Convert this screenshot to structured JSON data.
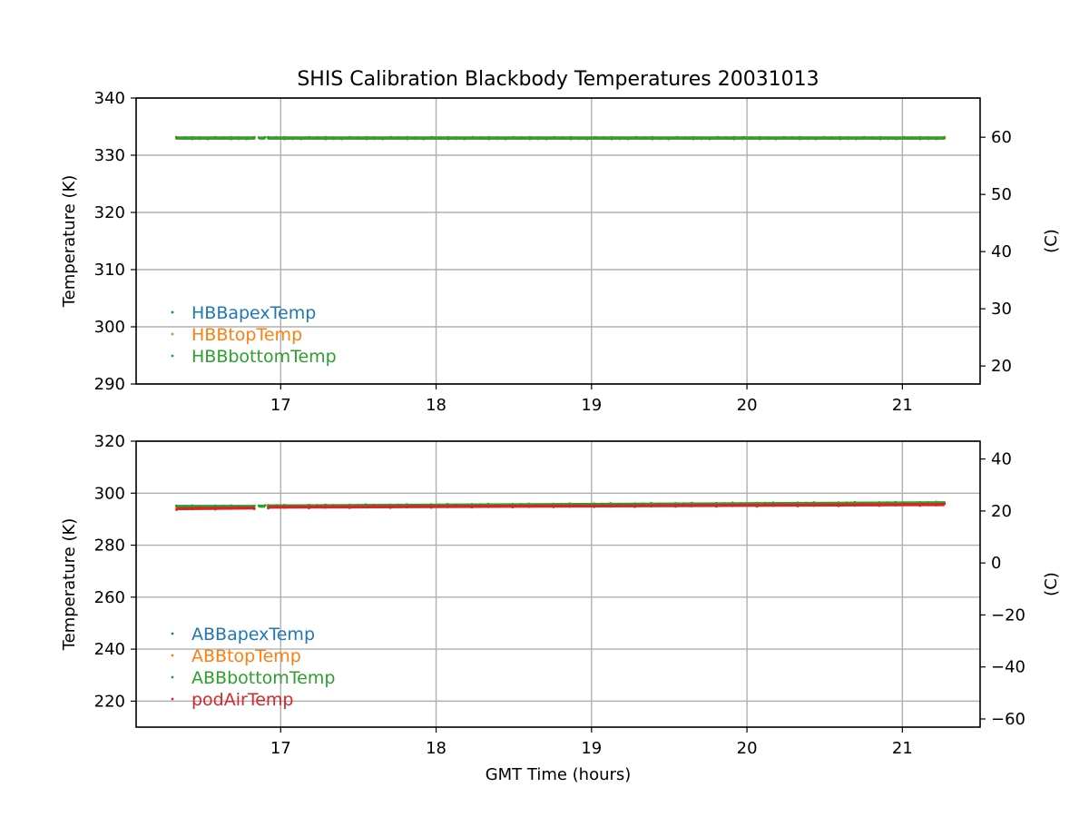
{
  "title": "SHIS Calibration Blackbody Temperatures 20031013",
  "colors": {
    "blue": "#1f77b4",
    "orange": "#ff7f0e",
    "green": "#2ca02c",
    "red": "#d62728"
  },
  "chart_data": [
    {
      "type": "scatter",
      "title": "SHIS Calibration Blackbody Temperatures 20031013",
      "xlabel": "",
      "ylabel": "Temperature (K)",
      "ylabel_right": "(C)",
      "xlim": [
        16.07,
        21.5
      ],
      "ylim": [
        290,
        340
      ],
      "ylim_right_C": [
        16.85,
        66.85
      ],
      "xticks": [
        17,
        18,
        19,
        20,
        21
      ],
      "xtick_labels": [
        "17",
        "18",
        "19",
        "20",
        "21"
      ],
      "yticks": [
        290,
        300,
        310,
        320,
        330,
        340
      ],
      "ytick_labels": [
        "290",
        "300",
        "310",
        "320",
        "330",
        "340"
      ],
      "yticks_right": [
        20,
        30,
        40,
        50,
        60
      ],
      "ytick_right_labels": [
        "20",
        "30",
        "40",
        "50",
        "60"
      ],
      "grid": true,
      "legend_position": "lower-left",
      "series": [
        {
          "name": "HBBapexTemp",
          "color": "#1f77b4",
          "segments": [
            {
              "x": [
                16.33,
                16.83
              ],
              "y": [
                333.0,
                333.0
              ]
            },
            {
              "x": [
                16.92,
                19.97
              ],
              "y": [
                333.0,
                333.0
              ]
            },
            {
              "x": [
                19.98,
                21.27
              ],
              "y": [
                333.0,
                333.0
              ]
            }
          ]
        },
        {
          "name": "HBBtopTemp",
          "color": "#ff7f0e",
          "segments": [
            {
              "x": [
                16.33,
                16.83
              ],
              "y": [
                333.0,
                333.0
              ]
            },
            {
              "x": [
                16.92,
                19.97
              ],
              "y": [
                333.0,
                333.0
              ]
            },
            {
              "x": [
                19.98,
                21.27
              ],
              "y": [
                333.0,
                333.0
              ]
            }
          ]
        },
        {
          "name": "HBBbottomTemp",
          "color": "#2ca02c",
          "segments": [
            {
              "x": [
                16.33,
                16.83
              ],
              "y": [
                333.0,
                333.0
              ]
            },
            {
              "x": [
                16.86,
                16.9
              ],
              "y": [
                333.0,
                333.0
              ]
            },
            {
              "x": [
                16.92,
                19.97
              ],
              "y": [
                333.0,
                333.0
              ]
            },
            {
              "x": [
                19.98,
                21.27
              ],
              "y": [
                333.0,
                333.0
              ]
            }
          ]
        }
      ]
    },
    {
      "type": "scatter",
      "title": "",
      "xlabel": "GMT Time (hours)",
      "ylabel": "Temperature (K)",
      "ylabel_right": "(C)",
      "xlim": [
        16.07,
        21.5
      ],
      "ylim": [
        210,
        320
      ],
      "ylim_right_C": [
        -63.15,
        46.85
      ],
      "xticks": [
        17,
        18,
        19,
        20,
        21
      ],
      "xtick_labels": [
        "17",
        "18",
        "19",
        "20",
        "21"
      ],
      "yticks": [
        220,
        240,
        260,
        280,
        300,
        320
      ],
      "ytick_labels": [
        "220",
        "240",
        "260",
        "280",
        "300",
        "320"
      ],
      "yticks_right": [
        -60,
        -40,
        -20,
        0,
        20,
        40
      ],
      "ytick_right_labels": [
        "−60",
        "−40",
        "−20",
        "0",
        "20",
        "40"
      ],
      "grid": true,
      "legend_position": "lower-left",
      "series": [
        {
          "name": "ABBapexTemp",
          "color": "#1f77b4",
          "segments": [
            {
              "x": [
                16.33,
                16.83
              ],
              "y": [
                294.8,
                294.8
              ]
            },
            {
              "x": [
                16.92,
                21.27
              ],
              "y": [
                295.0,
                296.2
              ]
            }
          ]
        },
        {
          "name": "ABBtopTemp",
          "color": "#ff7f0e",
          "segments": [
            {
              "x": [
                16.33,
                16.83
              ],
              "y": [
                294.8,
                294.8
              ]
            },
            {
              "x": [
                16.92,
                21.27
              ],
              "y": [
                295.0,
                296.2
              ]
            }
          ]
        },
        {
          "name": "ABBbottomTemp",
          "color": "#2ca02c",
          "segments": [
            {
              "x": [
                16.33,
                16.83
              ],
              "y": [
                294.9,
                294.9
              ]
            },
            {
              "x": [
                16.86,
                16.9
              ],
              "y": [
                295.0,
                295.0
              ]
            },
            {
              "x": [
                16.92,
                21.27
              ],
              "y": [
                295.1,
                296.3
              ]
            }
          ]
        },
        {
          "name": "podAirTemp",
          "color": "#d62728",
          "segments": [
            {
              "x": [
                16.33,
                16.83
              ],
              "y": [
                294.0,
                294.3
              ]
            },
            {
              "x": [
                16.92,
                21.27
              ],
              "y": [
                294.6,
                295.6
              ]
            }
          ]
        }
      ]
    }
  ]
}
